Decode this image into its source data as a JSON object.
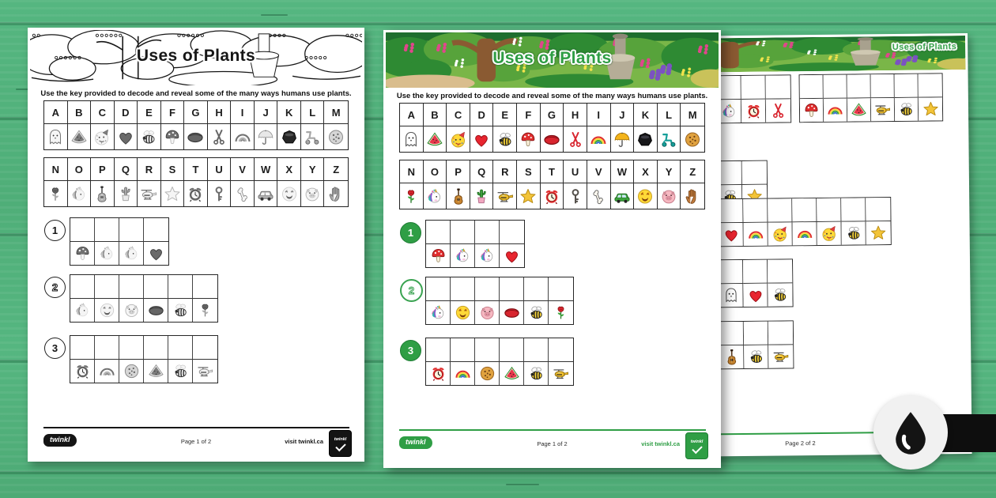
{
  "worksheet": {
    "title": "Uses of Plants",
    "instruction": "Use the key provided to decode and reveal some of the many ways humans use plants.",
    "key": [
      {
        "letter": "A",
        "icon": "ghost"
      },
      {
        "letter": "B",
        "icon": "watermelon"
      },
      {
        "letter": "C",
        "icon": "party-face"
      },
      {
        "letter": "D",
        "icon": "heart"
      },
      {
        "letter": "E",
        "icon": "bee"
      },
      {
        "letter": "F",
        "icon": "toadstool"
      },
      {
        "letter": "G",
        "icon": "football"
      },
      {
        "letter": "H",
        "icon": "scissors"
      },
      {
        "letter": "I",
        "icon": "rainbow"
      },
      {
        "letter": "J",
        "icon": "umbrella"
      },
      {
        "letter": "K",
        "icon": "hockey-puck"
      },
      {
        "letter": "L",
        "icon": "scooter"
      },
      {
        "letter": "M",
        "icon": "cookie"
      },
      {
        "letter": "N",
        "icon": "rose"
      },
      {
        "letter": "O",
        "icon": "unicorn"
      },
      {
        "letter": "P",
        "icon": "guitar"
      },
      {
        "letter": "Q",
        "icon": "cactus"
      },
      {
        "letter": "R",
        "icon": "helicopter"
      },
      {
        "letter": "S",
        "icon": "star"
      },
      {
        "letter": "T",
        "icon": "alarm-clock"
      },
      {
        "letter": "U",
        "icon": "key"
      },
      {
        "letter": "V",
        "icon": "bone"
      },
      {
        "letter": "W",
        "icon": "car"
      },
      {
        "letter": "X",
        "icon": "laughing-face"
      },
      {
        "letter": "Y",
        "icon": "pig-face"
      },
      {
        "letter": "Z",
        "icon": "hand"
      }
    ],
    "footer_brand": "twinkl",
    "footer_visit": "visit twinkl.ca"
  },
  "pages": [
    {
      "name": "worksheet-page-1-blackwhite",
      "variant": "bw",
      "page_label": "Page 1 of 2",
      "questions": [
        {
          "number": "1",
          "badge": "outline",
          "boxes": 4,
          "icons": [
            "toadstool",
            "unicorn",
            "unicorn",
            "heart"
          ]
        },
        {
          "number": "2",
          "badge": "outline-hollow",
          "boxes": 6,
          "icons": [
            "unicorn",
            "laughing-face",
            "pig-face",
            "football",
            "bee",
            "rose"
          ]
        },
        {
          "number": "3",
          "badge": "outline",
          "boxes": 6,
          "icons": [
            "alarm-clock",
            "rainbow",
            "cookie",
            "watermelon",
            "bee",
            "helicopter"
          ]
        }
      ]
    },
    {
      "name": "worksheet-page-1-colour",
      "variant": "color",
      "page_label": "Page 1 of 2",
      "questions": [
        {
          "number": "1",
          "badge": "solid",
          "boxes": 4,
          "icons": [
            "toadstool",
            "unicorn",
            "unicorn",
            "heart"
          ]
        },
        {
          "number": "2",
          "badge": "green-hollow",
          "boxes": 6,
          "icons": [
            "unicorn",
            "laughing-face",
            "pig-face",
            "football",
            "bee",
            "rose"
          ]
        },
        {
          "number": "3",
          "badge": "solid",
          "boxes": 6,
          "icons": [
            "alarm-clock",
            "rainbow",
            "cookie",
            "watermelon",
            "bee",
            "helicopter"
          ]
        }
      ]
    },
    {
      "name": "worksheet-page-2-colour",
      "variant": "color",
      "page_label": "Page 2 of 2",
      "answer_grids": [
        {
          "boxes": 5,
          "icons": [
            "party-face",
            "scooter",
            "unicorn",
            "alarm-clock",
            "scissors"
          ]
        },
        {
          "boxes": 6,
          "icons": [
            "toadstool",
            "rainbow",
            "watermelon",
            "helicopter",
            "bee",
            "star"
          ]
        },
        {
          "boxes": 4,
          "icons": [
            "heart",
            "pig-face",
            "bee",
            "star"
          ]
        },
        {
          "boxes": 9,
          "icons": [
            "cookie",
            "bee",
            "heart",
            "rainbow",
            "party-face",
            "rainbow",
            "party-face",
            "bee",
            "star"
          ]
        },
        {
          "boxes": 5,
          "icons": [
            "star",
            "scissors",
            "ghost",
            "heart",
            "bee"
          ]
        },
        {
          "boxes": 5,
          "icons": [
            "guitar",
            "ghost",
            "guitar",
            "bee",
            "helicopter"
          ]
        }
      ]
    }
  ],
  "watermark": {
    "icon": "ink-drop"
  }
}
